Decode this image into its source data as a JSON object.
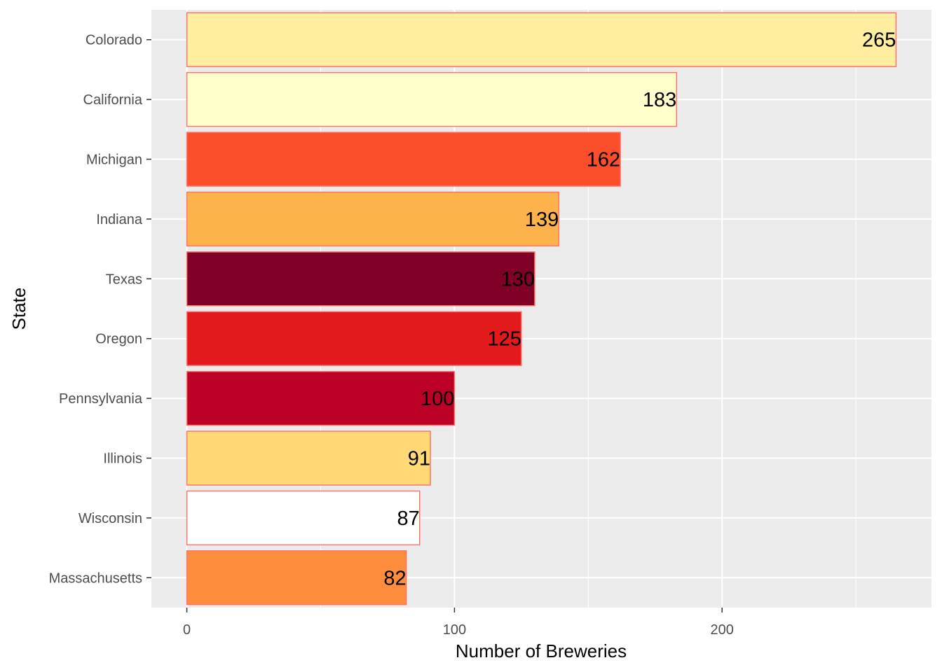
{
  "chart_data": {
    "type": "bar",
    "orientation": "horizontal",
    "xlabel": "Number of Breweries",
    "ylabel": "State",
    "xlim": [
      -13.25,
      278.25
    ],
    "x_ticks": [
      0,
      100,
      200
    ],
    "x_tick_labels": [
      "0",
      "100",
      "200"
    ],
    "grid": true,
    "legend": "none",
    "categories": [
      "Colorado",
      "California",
      "Michigan",
      "Indiana",
      "Texas",
      "Oregon",
      "Pennsylvania",
      "Illinois",
      "Wisconsin",
      "Massachusetts"
    ],
    "values": [
      265,
      183,
      162,
      139,
      130,
      125,
      100,
      91,
      87,
      82
    ],
    "data_labels": [
      "265",
      "183",
      "162",
      "139",
      "130",
      "125",
      "100",
      "91",
      "87",
      "82"
    ],
    "colors": [
      "#FFEDA0",
      "#FFFFCC",
      "#FC4E2A",
      "#FEB24C",
      "#800026",
      "#E31A1C",
      "#BD0026",
      "#FED976",
      "#FFFFFF",
      "#FD8D3C"
    ],
    "bar_outline_color": "#F8766D",
    "panel_background": "#EBEBEB",
    "grid_color": "#FFFFFF"
  }
}
